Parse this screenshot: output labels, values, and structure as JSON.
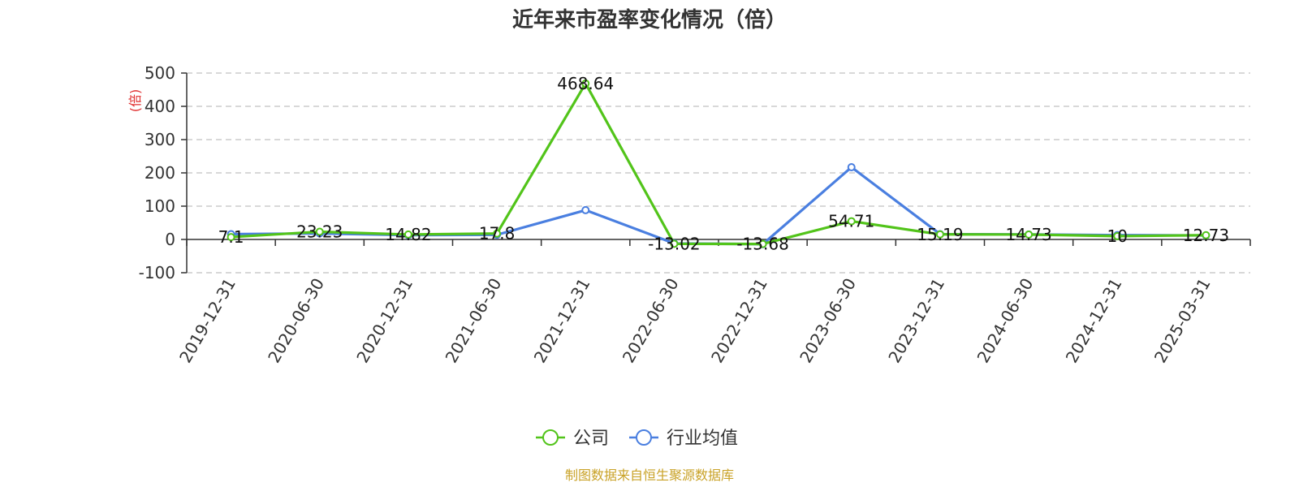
{
  "chart_data": {
    "type": "line",
    "title": "近年来市盈率变化情况（倍）",
    "ylabel": "(倍)",
    "xlabel": "",
    "categories": [
      "2019-12-31",
      "2020-06-30",
      "2020-12-31",
      "2021-06-30",
      "2021-12-31",
      "2022-06-30",
      "2022-12-31",
      "2023-06-30",
      "2023-12-31",
      "2024-06-30",
      "2024-12-31",
      "2025-03-31"
    ],
    "ylim": [
      -100,
      500
    ],
    "yticks": [
      -100,
      0,
      100,
      200,
      300,
      400,
      500
    ],
    "grid": true,
    "legend_position": "bottom",
    "series": [
      {
        "name": "公司",
        "color": "#52c41a",
        "values": [
          7.1,
          23.23,
          14.82,
          17.8,
          468.64,
          -13.02,
          -13.68,
          54.71,
          15.19,
          14.73,
          10,
          12.73
        ],
        "labels": [
          "7.1",
          "23.23",
          "14.82",
          "17.8",
          "468.64",
          "-13.02",
          "-13.68",
          "54.71",
          "15.19",
          "14.73",
          "10",
          "12.73"
        ]
      },
      {
        "name": "行业均值",
        "color": "#4a7fe0",
        "values": [
          16,
          18,
          13,
          14,
          88,
          -12,
          -14,
          217,
          16,
          15,
          13,
          12
        ]
      }
    ],
    "source": "制图数据来自恒生聚源数据库"
  },
  "colors": {
    "axis": "#333333",
    "grid": "#cccccc",
    "unit_label": "#e03030",
    "source": "#c9a227"
  }
}
